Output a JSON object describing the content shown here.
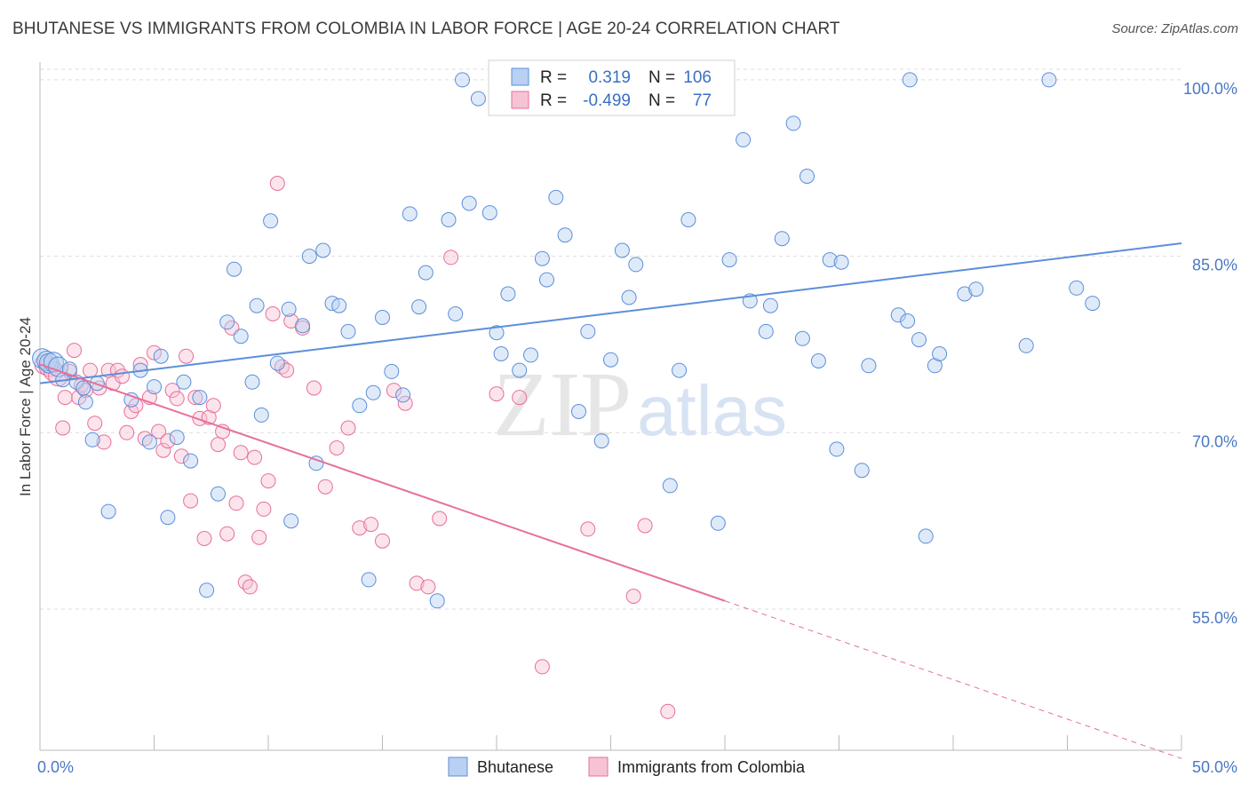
{
  "title": "BHUTANESE VS IMMIGRANTS FROM COLOMBIA IN LABOR FORCE | AGE 20-24 CORRELATION CHART",
  "source": "Source: ZipAtlas.com",
  "colors": {
    "blue": "#5b8fd9",
    "blue_fill": "#b9d0f2",
    "pink": "#e76f9a",
    "pink_fill": "#f6c3d5",
    "tick": "#4a78c2",
    "grid": "#dddddd"
  },
  "watermark": {
    "zip": "ZIP",
    "atlas": "atlas"
  },
  "stats": [
    {
      "r_label": "R =",
      "r": "0.319",
      "n_label": "N =",
      "n": "106"
    },
    {
      "r_label": "R =",
      "r": "-0.499",
      "n_label": "N =",
      "n": "77"
    }
  ],
  "chart_data": {
    "type": "scatter",
    "title": "BHUTANESE VS IMMIGRANTS FROM COLOMBIA IN LABOR FORCE | AGE 20-24 CORRELATION CHART",
    "xlabel": "",
    "ylabel": "In Labor Force | Age 20-24",
    "xlim": [
      0,
      50
    ],
    "ylim": [
      43,
      101.5
    ],
    "x_tick_labels": [
      "0.0%",
      "50.0%"
    ],
    "y_ticks": [
      55,
      70,
      85,
      100
    ],
    "y_tick_labels": [
      "55.0%",
      "70.0%",
      "85.0%",
      "100.0%"
    ],
    "grid": true,
    "legend_position": "bottom",
    "series": [
      {
        "name": "Bhutanese",
        "color": "#5b8fd9",
        "trend": {
          "x": [
            0,
            50
          ],
          "y": [
            74.2,
            86.1
          ],
          "dashed_from": null
        },
        "points": [
          [
            0.1,
            76.3
          ],
          [
            0.3,
            76.1
          ],
          [
            0.4,
            75.9
          ],
          [
            0.6,
            76.0
          ],
          [
            0.8,
            75.6
          ],
          [
            1.0,
            74.5
          ],
          [
            1.3,
            75.4
          ],
          [
            1.6,
            74.3
          ],
          [
            1.9,
            73.8
          ],
          [
            2.0,
            72.6
          ],
          [
            2.3,
            69.4
          ],
          [
            2.5,
            74.2
          ],
          [
            3.0,
            63.3
          ],
          [
            4.0,
            72.8
          ],
          [
            4.4,
            75.3
          ],
          [
            4.8,
            69.2
          ],
          [
            5.0,
            73.9
          ],
          [
            5.3,
            76.5
          ],
          [
            5.6,
            62.8
          ],
          [
            6.0,
            69.6
          ],
          [
            6.3,
            74.3
          ],
          [
            6.6,
            67.6
          ],
          [
            7.0,
            73.0
          ],
          [
            7.3,
            56.6
          ],
          [
            7.8,
            64.8
          ],
          [
            8.2,
            79.4
          ],
          [
            8.5,
            83.9
          ],
          [
            8.8,
            78.2
          ],
          [
            9.3,
            74.3
          ],
          [
            9.5,
            80.8
          ],
          [
            9.7,
            71.5
          ],
          [
            10.1,
            88.0
          ],
          [
            10.4,
            75.9
          ],
          [
            10.9,
            80.5
          ],
          [
            11.0,
            62.5
          ],
          [
            11.5,
            79.1
          ],
          [
            11.8,
            85.0
          ],
          [
            12.1,
            67.4
          ],
          [
            12.4,
            85.5
          ],
          [
            12.8,
            81.0
          ],
          [
            13.1,
            80.8
          ],
          [
            13.5,
            78.6
          ],
          [
            14.0,
            72.3
          ],
          [
            14.4,
            57.5
          ],
          [
            14.6,
            73.4
          ],
          [
            15.0,
            79.8
          ],
          [
            15.4,
            75.2
          ],
          [
            15.9,
            73.2
          ],
          [
            16.2,
            88.6
          ],
          [
            16.6,
            80.7
          ],
          [
            16.9,
            83.6
          ],
          [
            17.4,
            55.7
          ],
          [
            17.9,
            88.1
          ],
          [
            18.2,
            80.1
          ],
          [
            18.5,
            100.0
          ],
          [
            18.8,
            89.5
          ],
          [
            19.2,
            98.4
          ],
          [
            19.7,
            88.7
          ],
          [
            20.0,
            78.5
          ],
          [
            20.2,
            76.7
          ],
          [
            20.5,
            81.8
          ],
          [
            21.0,
            75.3
          ],
          [
            21.5,
            76.6
          ],
          [
            22.0,
            84.8
          ],
          [
            22.2,
            83.0
          ],
          [
            22.6,
            90.0
          ],
          [
            23.0,
            86.8
          ],
          [
            23.6,
            71.8
          ],
          [
            24.0,
            78.6
          ],
          [
            24.6,
            69.3
          ],
          [
            25.0,
            76.2
          ],
          [
            25.5,
            85.5
          ],
          [
            25.8,
            81.5
          ],
          [
            26.1,
            84.3
          ],
          [
            27.6,
            65.5
          ],
          [
            28.0,
            75.3
          ],
          [
            28.4,
            88.1
          ],
          [
            29.7,
            62.3
          ],
          [
            30.2,
            84.7
          ],
          [
            30.8,
            94.9
          ],
          [
            31.1,
            81.2
          ],
          [
            31.8,
            78.6
          ],
          [
            32.0,
            80.8
          ],
          [
            32.5,
            86.5
          ],
          [
            33.0,
            96.3
          ],
          [
            33.4,
            78.0
          ],
          [
            33.6,
            91.8
          ],
          [
            34.1,
            76.1
          ],
          [
            34.6,
            84.7
          ],
          [
            34.9,
            68.6
          ],
          [
            35.1,
            84.5
          ],
          [
            36.0,
            66.8
          ],
          [
            36.3,
            75.7
          ],
          [
            37.6,
            80.0
          ],
          [
            38.0,
            79.5
          ],
          [
            38.1,
            100.0
          ],
          [
            38.5,
            77.9
          ],
          [
            38.8,
            61.2
          ],
          [
            39.2,
            75.7
          ],
          [
            39.4,
            76.7
          ],
          [
            40.5,
            81.8
          ],
          [
            41.0,
            82.2
          ],
          [
            43.2,
            77.4
          ],
          [
            44.2,
            100.0
          ],
          [
            45.4,
            82.3
          ],
          [
            46.1,
            81.0
          ]
        ]
      },
      {
        "name": "Immigrants from Colombia",
        "color": "#e76f9a",
        "trend": {
          "x": [
            0,
            50
          ],
          "y": [
            75.8,
            42.3
          ],
          "dashed_from": 30
        },
        "points": [
          [
            0.2,
            75.8
          ],
          [
            0.4,
            75.6
          ],
          [
            0.6,
            75.2
          ],
          [
            0.8,
            74.8
          ],
          [
            1.0,
            70.4
          ],
          [
            1.1,
            73.0
          ],
          [
            1.3,
            75.2
          ],
          [
            1.5,
            77.0
          ],
          [
            1.7,
            73.0
          ],
          [
            1.8,
            74.0
          ],
          [
            2.0,
            73.6
          ],
          [
            2.2,
            75.3
          ],
          [
            2.4,
            70.8
          ],
          [
            2.6,
            73.8
          ],
          [
            2.8,
            69.2
          ],
          [
            3.0,
            75.3
          ],
          [
            3.2,
            74.2
          ],
          [
            3.4,
            75.3
          ],
          [
            3.6,
            74.8
          ],
          [
            3.8,
            70.0
          ],
          [
            4.0,
            71.8
          ],
          [
            4.2,
            72.3
          ],
          [
            4.4,
            75.8
          ],
          [
            4.6,
            69.5
          ],
          [
            4.8,
            73.0
          ],
          [
            5.0,
            76.8
          ],
          [
            5.2,
            70.1
          ],
          [
            5.4,
            68.5
          ],
          [
            5.6,
            69.3
          ],
          [
            5.8,
            73.6
          ],
          [
            6.0,
            72.9
          ],
          [
            6.2,
            68.0
          ],
          [
            6.4,
            76.5
          ],
          [
            6.6,
            64.2
          ],
          [
            6.8,
            73.0
          ],
          [
            7.0,
            71.2
          ],
          [
            7.2,
            61.0
          ],
          [
            7.4,
            71.3
          ],
          [
            7.6,
            72.3
          ],
          [
            7.8,
            69.0
          ],
          [
            8.0,
            70.1
          ],
          [
            8.2,
            61.4
          ],
          [
            8.4,
            78.9
          ],
          [
            8.6,
            64.0
          ],
          [
            8.8,
            68.3
          ],
          [
            9.0,
            57.3
          ],
          [
            9.2,
            56.9
          ],
          [
            9.4,
            67.9
          ],
          [
            9.6,
            61.1
          ],
          [
            9.8,
            63.5
          ],
          [
            10.0,
            65.9
          ],
          [
            10.2,
            80.1
          ],
          [
            10.4,
            91.2
          ],
          [
            10.6,
            75.6
          ],
          [
            10.8,
            75.3
          ],
          [
            11.0,
            79.5
          ],
          [
            11.5,
            78.9
          ],
          [
            12.0,
            73.8
          ],
          [
            12.5,
            65.4
          ],
          [
            13.0,
            68.7
          ],
          [
            13.5,
            70.4
          ],
          [
            14.0,
            61.9
          ],
          [
            14.5,
            62.2
          ],
          [
            15.0,
            60.8
          ],
          [
            15.5,
            73.6
          ],
          [
            16.0,
            72.5
          ],
          [
            16.5,
            57.2
          ],
          [
            17.0,
            56.9
          ],
          [
            17.5,
            62.7
          ],
          [
            18.0,
            84.9
          ],
          [
            20.0,
            73.3
          ],
          [
            21.0,
            73.0
          ],
          [
            22.0,
            50.1
          ],
          [
            24.0,
            61.8
          ],
          [
            26.0,
            56.1
          ],
          [
            26.5,
            62.1
          ],
          [
            27.5,
            46.3
          ]
        ]
      }
    ]
  }
}
